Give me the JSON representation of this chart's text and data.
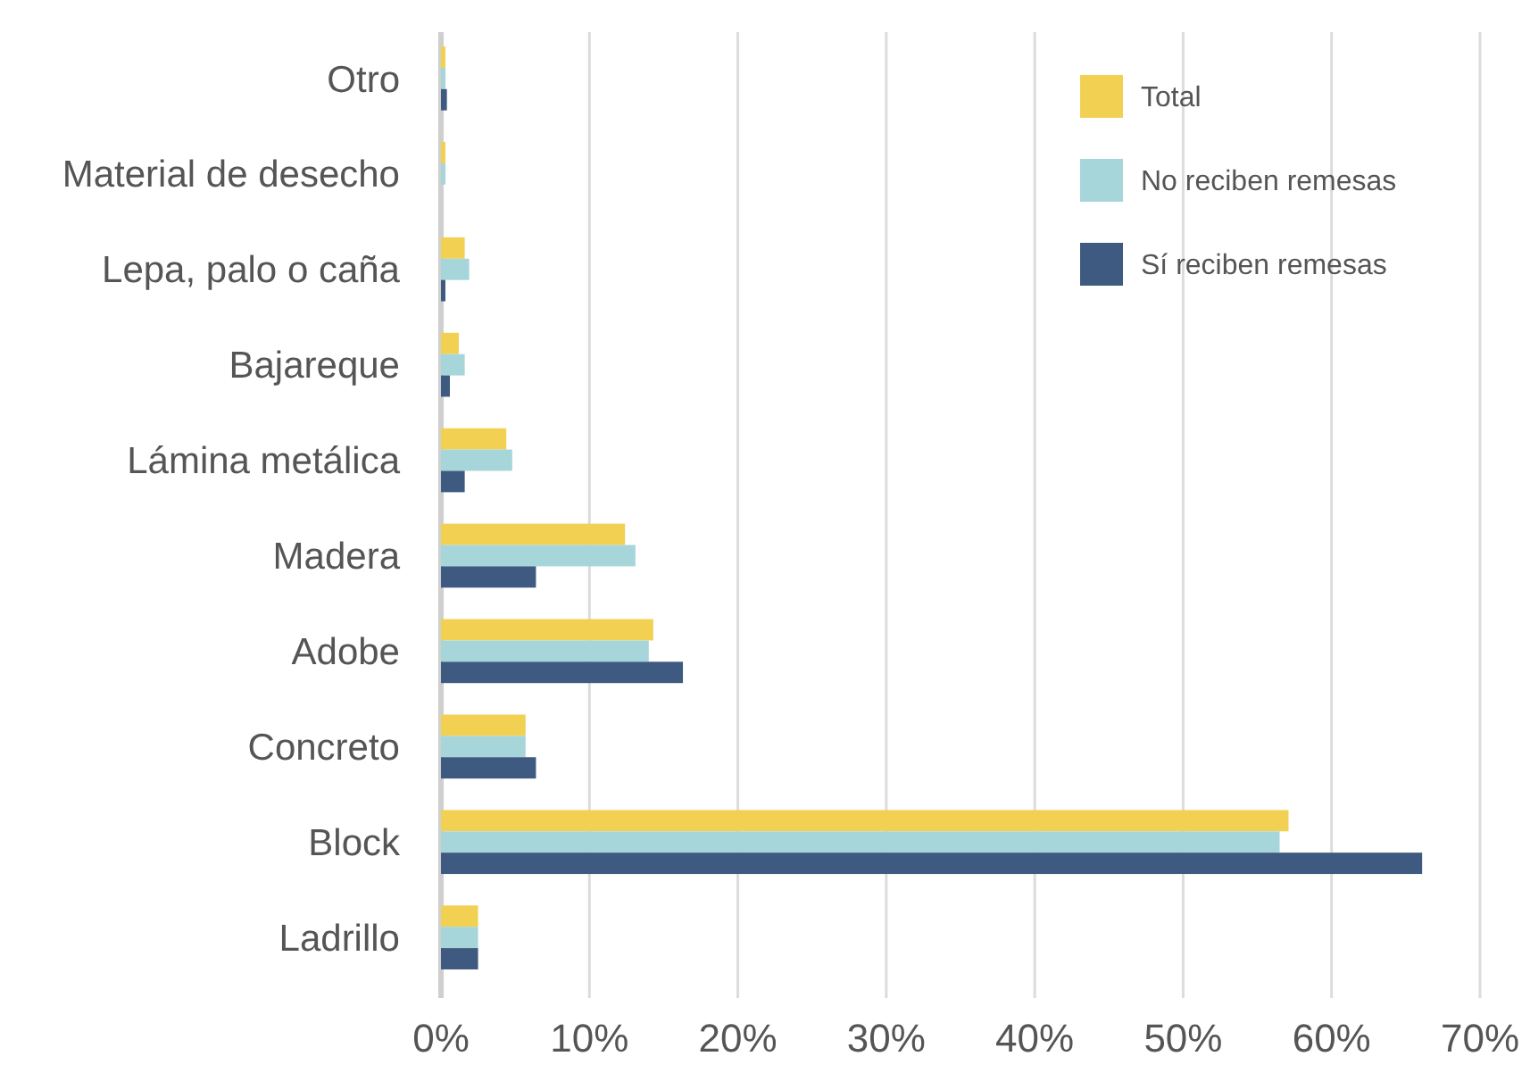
{
  "chart_data": {
    "type": "bar",
    "orientation": "horizontal",
    "categories": [
      "Otro",
      "Material de desecho",
      "Lepa, palo o caña",
      "Bajareque",
      "Lámina metálica",
      "Madera",
      "Adobe",
      "Concreto",
      "Block",
      "Ladrillo"
    ],
    "series": [
      {
        "name": "Total",
        "color": "#f2d052",
        "values": [
          0.3,
          0.3,
          1.6,
          1.2,
          4.4,
          12.4,
          14.3,
          5.7,
          57.1,
          2.5
        ]
      },
      {
        "name": "No reciben remesas",
        "color": "#a6d5da",
        "values": [
          0.3,
          0.3,
          1.9,
          1.6,
          4.8,
          13.1,
          14.0,
          5.7,
          56.5,
          2.5
        ]
      },
      {
        "name": "Sí reciben remesas",
        "color": "#3e5a80",
        "values": [
          0.4,
          0,
          0.3,
          0.6,
          1.6,
          6.4,
          16.3,
          6.4,
          66.1,
          2.5
        ]
      }
    ],
    "xlim": [
      0,
      70
    ],
    "xticks": [
      {
        "value": 0,
        "label": "0%"
      },
      {
        "value": 10,
        "label": "10%"
      },
      {
        "value": 20,
        "label": "20%"
      },
      {
        "value": 30,
        "label": "30%"
      },
      {
        "value": 40,
        "label": "40%"
      },
      {
        "value": 50,
        "label": "50%"
      },
      {
        "value": 60,
        "label": "60%"
      },
      {
        "value": 70,
        "label": "70%"
      }
    ],
    "grid": "x",
    "legend": "top right"
  }
}
